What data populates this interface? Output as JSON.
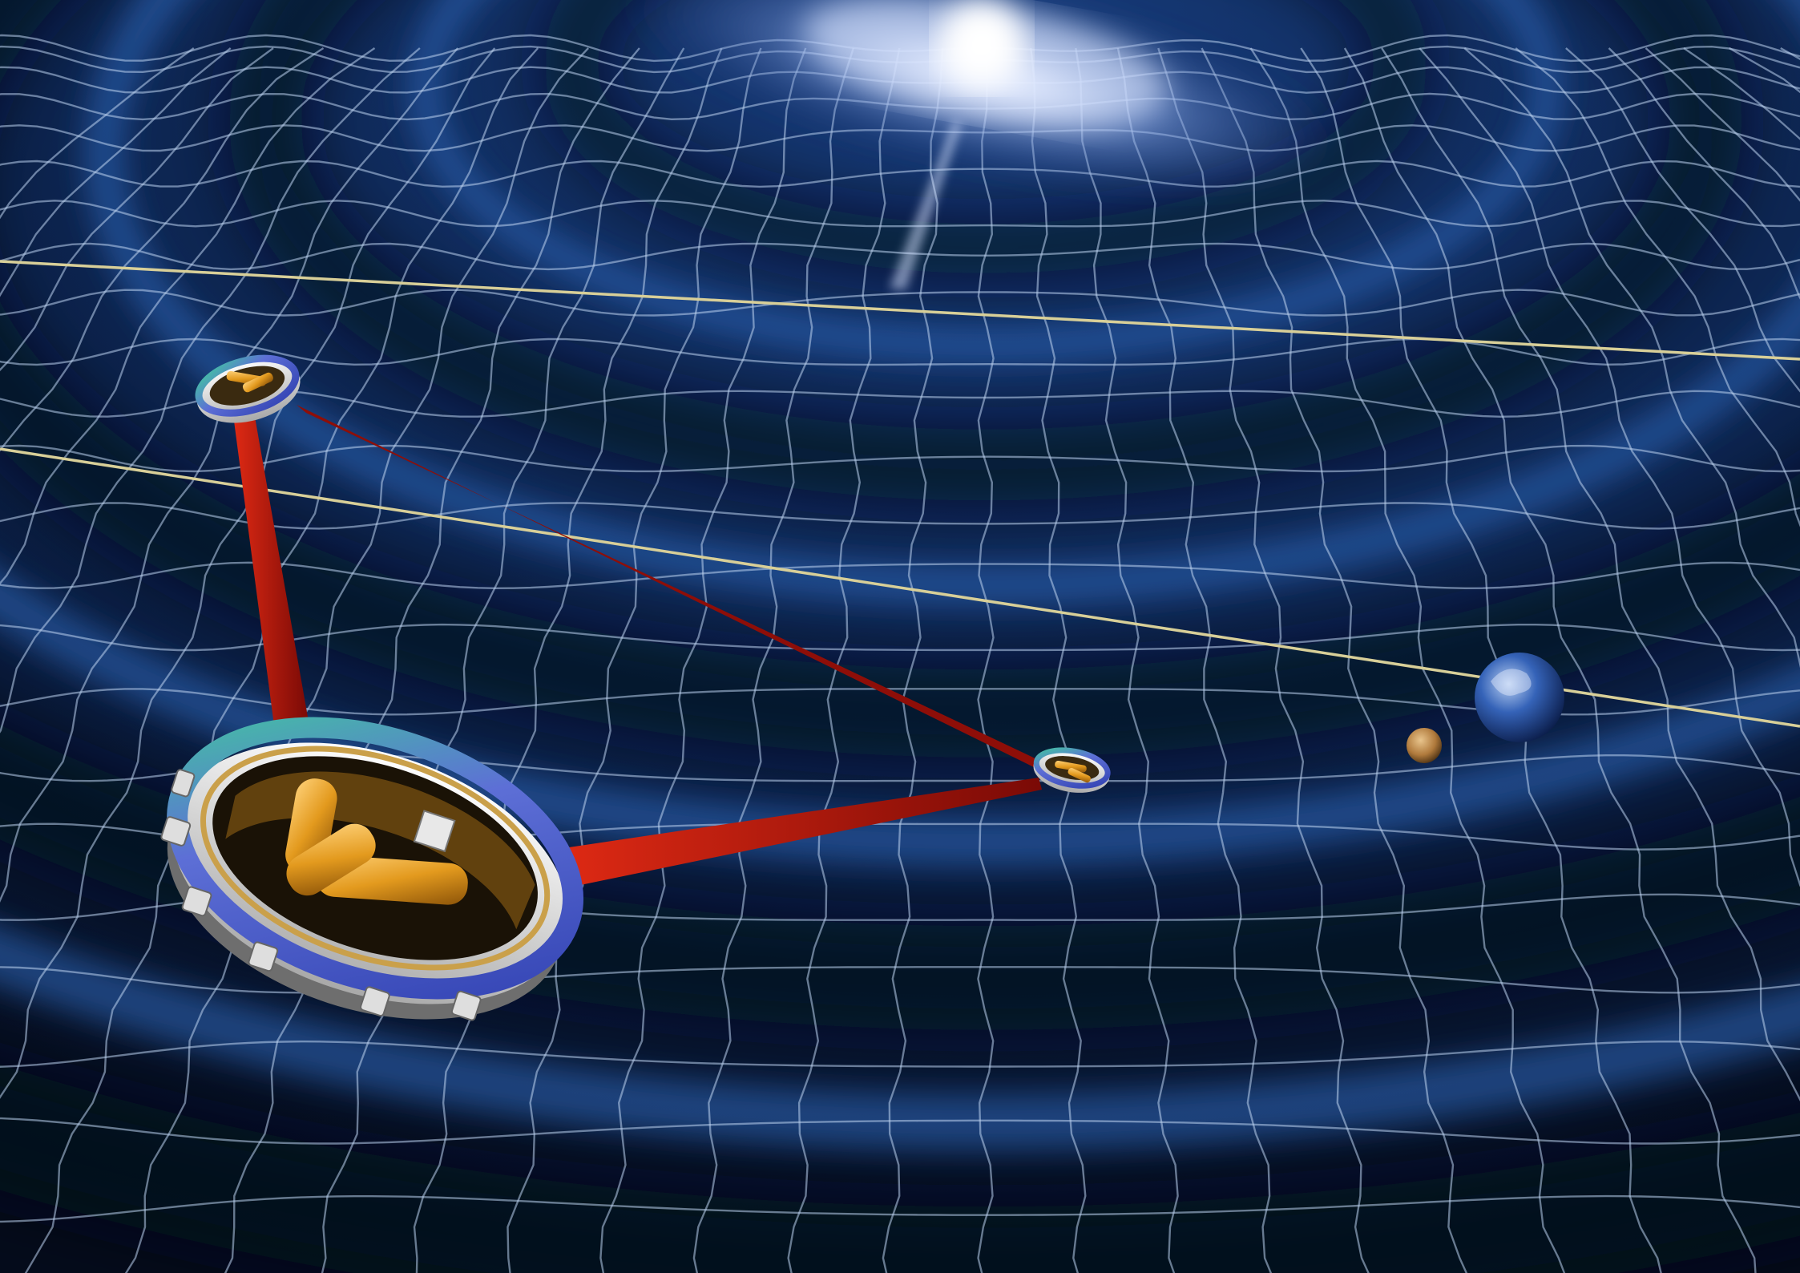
{
  "scene": {
    "subject": "space-interferometer-illustration",
    "background_color": "#02060f",
    "wave_color": "#1f4f96",
    "wave_shadow_color": "#030a1a",
    "grid_color": "#bcd2ef",
    "orbit_line_color": "#d8cf98",
    "laser_color": "#c3120a",
    "galaxy_core_color": "#ffffff",
    "galaxy_arm_color": "#8aa8e6",
    "spacecraft_ring_color": "#d9d9d9",
    "spacecraft_rim_color": "#5d6fd6",
    "spacecraft_payload_color": "#e39a1e",
    "earth_color": "#3563b8",
    "moon_color": "#b07a3c"
  }
}
